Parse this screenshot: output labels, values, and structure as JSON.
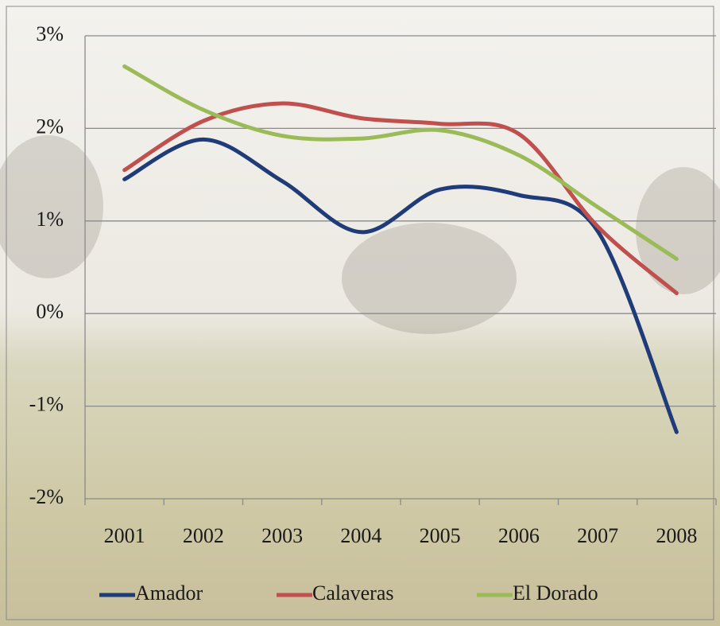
{
  "chart_data": {
    "type": "line",
    "categories": [
      "2001",
      "2002",
      "2003",
      "2004",
      "2005",
      "2006",
      "2007",
      "2008"
    ],
    "series": [
      {
        "name": "Amador",
        "color": "#1f3c78",
        "values": [
          1.45,
          1.88,
          1.43,
          0.88,
          1.34,
          1.28,
          0.89,
          -1.28
        ]
      },
      {
        "name": "Calaveras",
        "color": "#c0504d",
        "values": [
          1.55,
          2.08,
          2.27,
          2.11,
          2.05,
          1.94,
          0.94,
          0.22
        ]
      },
      {
        "name": "El Dorado",
        "color": "#9bbb59",
        "values": [
          2.67,
          2.2,
          1.92,
          1.89,
          1.98,
          1.71,
          1.15,
          0.59
        ]
      }
    ],
    "ylim": [
      -2,
      3
    ],
    "yticks": [
      {
        "value": -2,
        "label": "-2%"
      },
      {
        "value": -1,
        "label": "-1%"
      },
      {
        "value": 0,
        "label": "0%"
      },
      {
        "value": 1,
        "label": "1%"
      },
      {
        "value": 2,
        "label": "2%"
      },
      {
        "value": 3,
        "label": "3%"
      }
    ],
    "grid": true,
    "legend": "bottom"
  }
}
